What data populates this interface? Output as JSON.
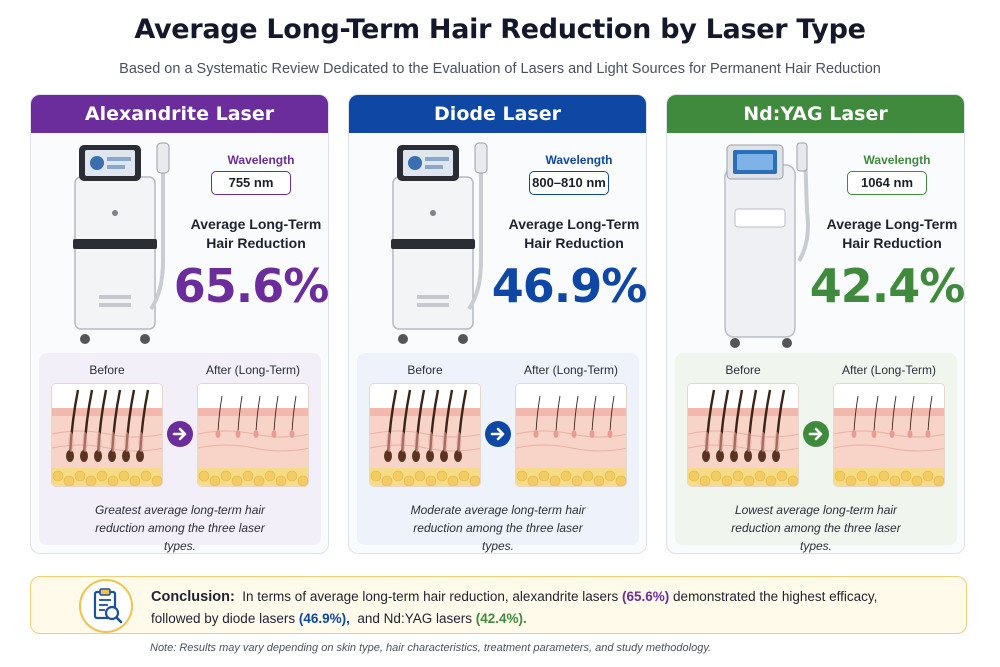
{
  "header": {
    "title": "Average Long-Term Hair Reduction by Laser Type",
    "subtitle": "Based on a Systematic Review Dedicated to the Evaluation of Lasers and Light Sources for Permanent Hair Reduction"
  },
  "cards": [
    {
      "name": "Alexandrite Laser",
      "wavelength_label": "Wavelength",
      "wavelength": "755 nm",
      "reduction_label": "Average Long-Term Hair Reduction",
      "reduction": "65.6%",
      "before_label": "Before",
      "after_label": "After (Long-Term)",
      "note": "Greatest average long-term hair reduction among the three laser types.",
      "color": "#6a2d9b",
      "panel_color": "#f3eff8"
    },
    {
      "name": "Diode Laser",
      "wavelength_label": "Wavelength",
      "wavelength": "800–810 nm",
      "reduction_label": "Average Long-Term Hair Reduction",
      "reduction": "46.9%",
      "before_label": "Before",
      "after_label": "After (Long-Term)",
      "note": "Moderate average long-term hair reduction among the three laser types.",
      "color": "#0f47a5",
      "panel_color": "#eef2fa"
    },
    {
      "name": "Nd:YAG Laser",
      "wavelength_label": "Wavelength",
      "wavelength": "1064 nm",
      "reduction_label": "Average Long-Term Hair Reduction",
      "reduction": "42.4%",
      "before_label": "Before",
      "after_label": "After (Long-Term)",
      "note": "Lowest average long-term hair reduction among the three laser types.",
      "color": "#3f8a3d",
      "panel_color": "#f0f5ee"
    }
  ],
  "conclusion": {
    "label": "Conclusion:",
    "text_1": "In terms of average long-term hair reduction, alexandrite lasers",
    "value_1": "(65.6%)",
    "text_2": "demonstrated the highest efficacy,",
    "text_3": "followed by diode lasers",
    "value_2": "(46.9%),",
    "text_4": "and Nd:YAG lasers",
    "value_3": "(42.4%).",
    "icon": "clipboard-search-icon"
  },
  "footnote": "Note: Results may vary depending on skin type, hair characteristics, treatment parameters, and study methodology."
}
